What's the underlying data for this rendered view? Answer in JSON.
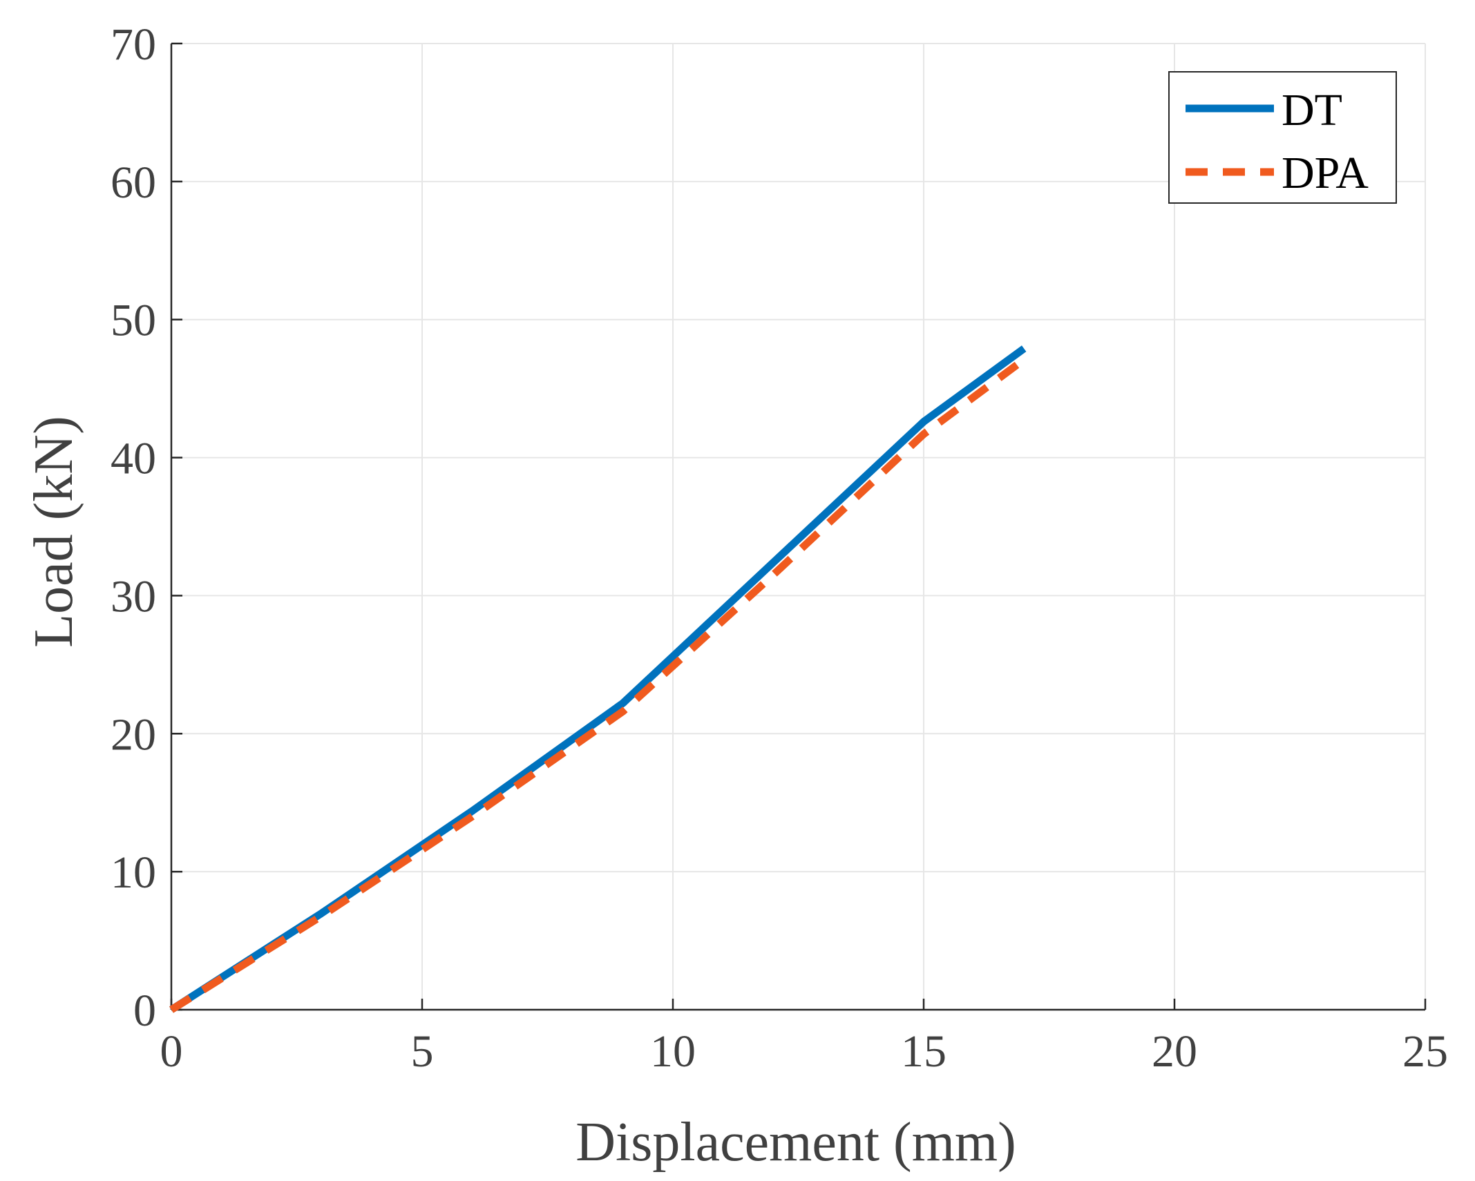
{
  "chart_data": {
    "type": "line",
    "xlabel": "Displacement (mm)",
    "ylabel": "Load (kN)",
    "xlim": [
      0,
      25
    ],
    "ylim": [
      0,
      70
    ],
    "xticks": [
      0,
      5,
      10,
      15,
      20,
      25
    ],
    "yticks": [
      0,
      10,
      20,
      30,
      40,
      50,
      60,
      70
    ],
    "grid": true,
    "legend_position": "top-right",
    "series": [
      {
        "name": "DT",
        "style": "solid",
        "color": "#0072BD",
        "points": [
          [
            0,
            0
          ],
          [
            3,
            7
          ],
          [
            6,
            14.4
          ],
          [
            9,
            22.2
          ],
          [
            10,
            25.6
          ],
          [
            12,
            32.4
          ],
          [
            14,
            39.2
          ],
          [
            15,
            42.6
          ],
          [
            17,
            47.9
          ]
        ]
      },
      {
        "name": "DPA",
        "style": "dashed",
        "color": "#F05A1E",
        "points": [
          [
            0,
            0
          ],
          [
            3,
            6.8
          ],
          [
            6,
            14.0
          ],
          [
            9,
            21.6
          ],
          [
            10,
            24.9
          ],
          [
            12,
            31.5
          ],
          [
            14,
            38.3
          ],
          [
            15,
            41.7
          ],
          [
            17,
            47.1
          ]
        ]
      }
    ]
  }
}
